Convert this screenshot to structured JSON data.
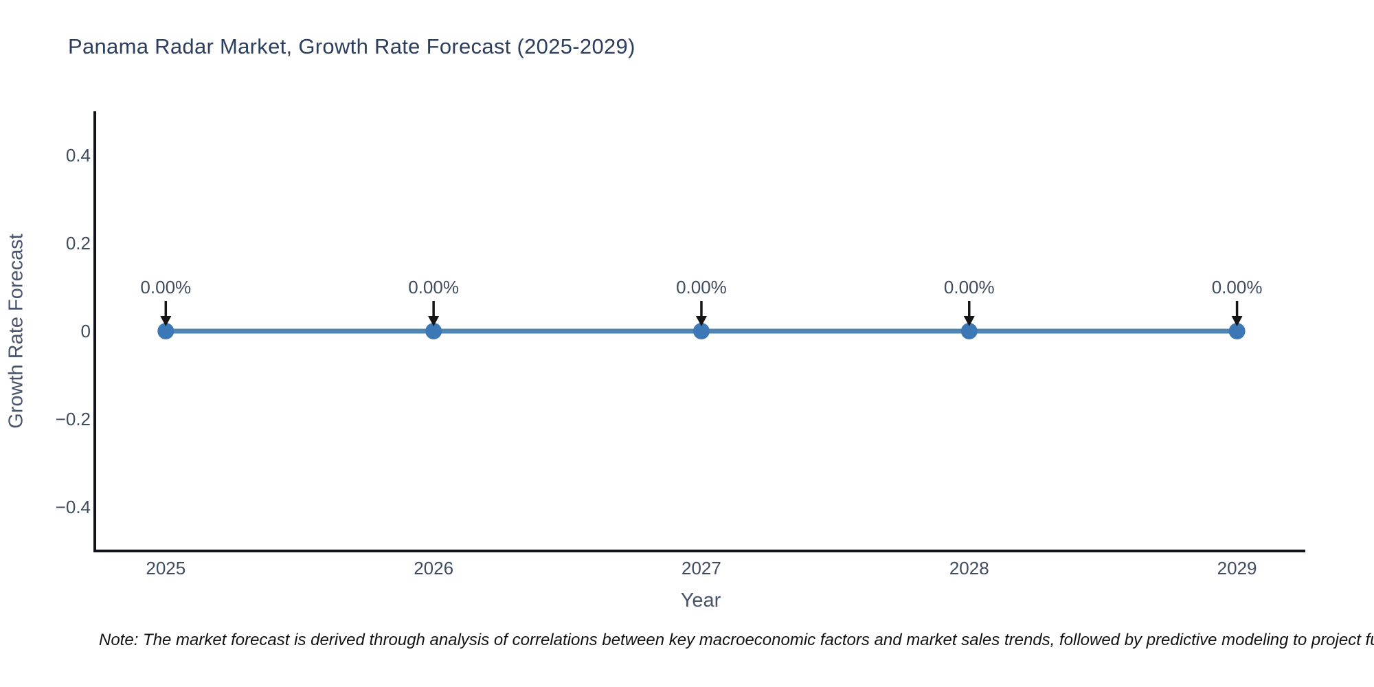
{
  "chart_data": {
    "type": "line",
    "title": "Panama Radar Market, Growth Rate Forecast (2025-2029)",
    "xlabel": "Year",
    "ylabel": "Growth Rate Forecast",
    "x": [
      2025,
      2026,
      2027,
      2028,
      2029
    ],
    "series": [
      {
        "name": "Growth Rate Forecast",
        "values": [
          0,
          0,
          0,
          0,
          0
        ]
      }
    ],
    "point_labels": [
      "0.00%",
      "0.00%",
      "0.00%",
      "0.00%",
      "0.00%"
    ],
    "xtick_labels": [
      "2025",
      "2026",
      "2027",
      "2028",
      "2029"
    ],
    "ytick_values": [
      0.4,
      0.2,
      0,
      -0.2,
      -0.4
    ],
    "ytick_labels": [
      "0.4",
      "0.2",
      "0",
      "−0.2",
      "−0.4"
    ],
    "xlim": [
      2024.735,
      2029.255
    ],
    "ylim": [
      -0.5,
      0.5
    ],
    "grid": false,
    "legend": false,
    "annotation_arrows": "down-arrow-to-each-point"
  },
  "note": "Note: The market forecast is derived through analysis of correlations between key macroeconomic factors and market sales trends, followed by predictive modeling to project future sales",
  "colors": {
    "background": "#ffffff",
    "line": "#4e84b2",
    "marker": "#3c78b5",
    "arrow": "#151515",
    "axis_line": "#11131a",
    "title_text": "#2c3e5d",
    "tick_text": "#3f4b5e",
    "axis_title_text": "#46536b",
    "note_text": "#131313"
  }
}
